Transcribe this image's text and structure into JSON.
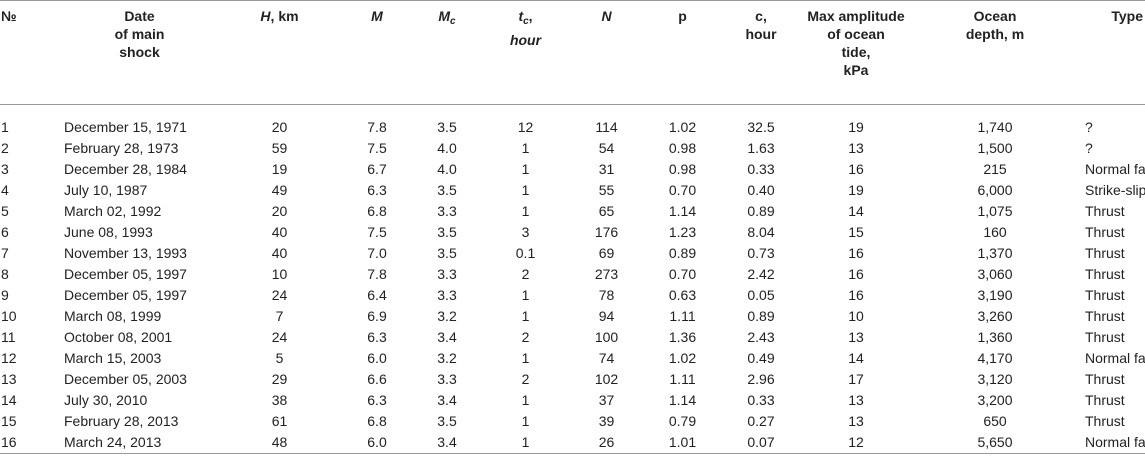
{
  "header": {
    "no": "№",
    "date": [
      "Date",
      "of main",
      "shock"
    ],
    "h": {
      "sym": "H",
      "rest": ", km"
    },
    "m": "M",
    "mc": {
      "base": "M",
      "sub": "c"
    },
    "tc": {
      "base": "t",
      "sub": "c",
      "rest": ",",
      "line2": "hour"
    },
    "n": "N",
    "p": "p",
    "c": [
      "c,",
      "hour"
    ],
    "amp": [
      "Max amplitude",
      "of ocean",
      "tide,",
      "kPa"
    ],
    "depth": [
      "Ocean",
      "depth, m"
    ],
    "type": "Type"
  },
  "rows": [
    {
      "no": "1",
      "date": "December 15, 1971",
      "h": "20",
      "m": "7.8",
      "mc": "3.5",
      "tc": "12",
      "n": "114",
      "p": "1.02",
      "c": "32.5",
      "amp": "19",
      "depth": "1,740",
      "type": "?"
    },
    {
      "no": "2",
      "date": "February 28, 1973",
      "h": "59",
      "m": "7.5",
      "mc": "4.0",
      "tc": "1",
      "n": "54",
      "p": "0.98",
      "c": "1.63",
      "amp": "13",
      "depth": "1,500",
      "type": "?"
    },
    {
      "no": "3",
      "date": "December 28, 1984",
      "h": "19",
      "m": "6.7",
      "mc": "4.0",
      "tc": "1",
      "n": "31",
      "p": "0.98",
      "c": "0.33",
      "amp": "16",
      "depth": "215",
      "type": "Normal fault"
    },
    {
      "no": "4",
      "date": "July 10, 1987",
      "h": "49",
      "m": "6.3",
      "mc": "3.5",
      "tc": "1",
      "n": "55",
      "p": "0.70",
      "c": "0.40",
      "amp": "19",
      "depth": "6,000",
      "type": "Strike-slip"
    },
    {
      "no": "5",
      "date": "March 02, 1992",
      "h": "20",
      "m": "6.8",
      "mc": "3.3",
      "tc": "1",
      "n": "65",
      "p": "1.14",
      "c": "0.89",
      "amp": "14",
      "depth": "1,075",
      "type": "Thrust"
    },
    {
      "no": "6",
      "date": "June 08, 1993",
      "h": "40",
      "m": "7.5",
      "mc": "3.5",
      "tc": "3",
      "n": "176",
      "p": "1.23",
      "c": "8.04",
      "amp": "15",
      "depth": "160",
      "type": "Thrust"
    },
    {
      "no": "7",
      "date": "November 13, 1993",
      "h": "40",
      "m": "7.0",
      "mc": "3.5",
      "tc": "0.1",
      "n": "69",
      "p": "0.89",
      "c": "0.73",
      "amp": "16",
      "depth": "1,370",
      "type": "Thrust"
    },
    {
      "no": "8",
      "date": "December 05, 1997",
      "h": "10",
      "m": "7.8",
      "mc": "3.3",
      "tc": "2",
      "n": "273",
      "p": "0.70",
      "c": "2.42",
      "amp": "16",
      "depth": "3,060",
      "type": "Thrust"
    },
    {
      "no": "9",
      "date": "December 05, 1997",
      "h": "24",
      "m": "6.4",
      "mc": "3.3",
      "tc": "1",
      "n": "78",
      "p": "0.63",
      "c": "0.05",
      "amp": "16",
      "depth": "3,190",
      "type": "Thrust"
    },
    {
      "no": "10",
      "date": "March 08, 1999",
      "h": "7",
      "m": "6.9",
      "mc": "3.2",
      "tc": "1",
      "n": "94",
      "p": "1.11",
      "c": "0.89",
      "amp": "10",
      "depth": "3,260",
      "type": "Thrust"
    },
    {
      "no": "11",
      "date": "October 08, 2001",
      "h": "24",
      "m": "6.3",
      "mc": "3.4",
      "tc": "2",
      "n": "100",
      "p": "1.36",
      "c": "2.43",
      "amp": "13",
      "depth": "1,360",
      "type": "Thrust"
    },
    {
      "no": "12",
      "date": "March 15, 2003",
      "h": "5",
      "m": "6.0",
      "mc": "3.2",
      "tc": "1",
      "n": "74",
      "p": "1.02",
      "c": "0.49",
      "amp": "14",
      "depth": "4,170",
      "type": "Normal fault"
    },
    {
      "no": "13",
      "date": "December 05, 2003",
      "h": "29",
      "m": "6.6",
      "mc": "3.3",
      "tc": "2",
      "n": "102",
      "p": "1.11",
      "c": "2.96",
      "amp": "17",
      "depth": "3,120",
      "type": "Thrust"
    },
    {
      "no": "14",
      "date": "July 30, 2010",
      "h": "38",
      "m": "6.3",
      "mc": "3.4",
      "tc": "1",
      "n": "37",
      "p": "1.14",
      "c": "0.33",
      "amp": "13",
      "depth": "3,200",
      "type": "Thrust"
    },
    {
      "no": "15",
      "date": "February 28, 2013",
      "h": "61",
      "m": "6.8",
      "mc": "3.5",
      "tc": "1",
      "n": "39",
      "p": "0.79",
      "c": "0.27",
      "amp": "13",
      "depth": "650",
      "type": "Thrust"
    },
    {
      "no": "16",
      "date": "March 24, 2013",
      "h": "48",
      "m": "6.0",
      "mc": "3.4",
      "tc": "1",
      "n": "26",
      "p": "1.01",
      "c": "0.07",
      "amp": "12",
      "depth": "5,650",
      "type": "Normal fault"
    }
  ]
}
